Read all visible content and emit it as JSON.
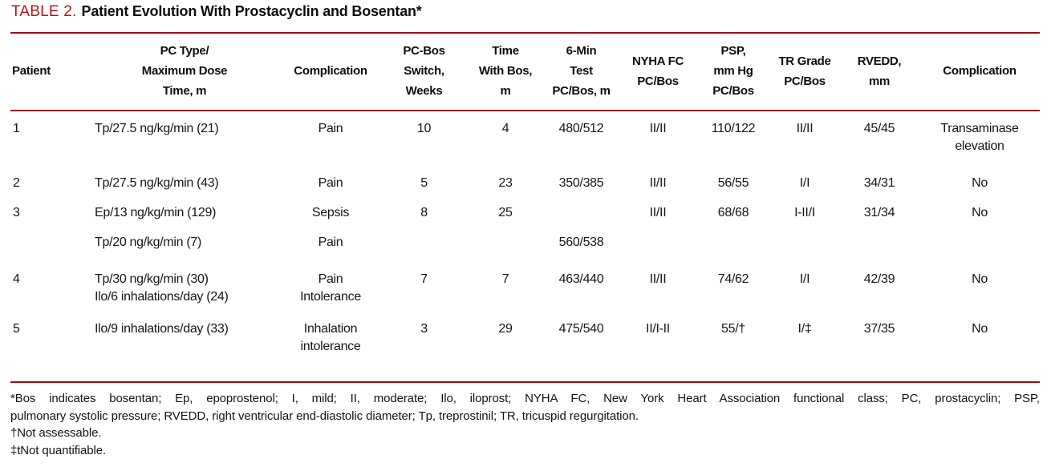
{
  "colors": {
    "accent_red": "#b5121a",
    "rule_red": "#9e0d12"
  },
  "title": {
    "label": "TABLE 2.",
    "text": "Patient Evolution With Prostacyclin and Bosentan*"
  },
  "table": {
    "header": [
      [
        "Patient"
      ],
      [
        "PC Type/",
        "Maximum Dose",
        "Time, m"
      ],
      [
        "Complication"
      ],
      [
        "PC-Bos",
        "Switch,",
        "Weeks"
      ],
      [
        "Time",
        "With Bos,",
        "m"
      ],
      [
        "6-Min",
        "Test",
        "PC/Bos, m"
      ],
      [
        "NYHA FC",
        "PC/Bos"
      ],
      [
        "PSP,",
        "mm Hg",
        "PC/Bos"
      ],
      [
        "TR Grade",
        "PC/Bos"
      ],
      [
        "RVEDD,",
        "mm"
      ],
      [
        "Complication"
      ]
    ],
    "rows": [
      [
        [
          "1"
        ],
        [
          "Tp/27.5 ng/kg/min (21)"
        ],
        [
          "Pain"
        ],
        [
          "10"
        ],
        [
          "4"
        ],
        [
          "480/512"
        ],
        [
          "II/II"
        ],
        [
          "110/122"
        ],
        [
          "II/II"
        ],
        [
          "45/45"
        ],
        [
          "Transaminase",
          "elevation"
        ]
      ],
      [
        [
          "2"
        ],
        [
          "Tp/27.5 ng/kg/min (43)"
        ],
        [
          "Pain"
        ],
        [
          "5"
        ],
        [
          "23"
        ],
        [
          "350/385"
        ],
        [
          "II/II"
        ],
        [
          "56/55"
        ],
        [
          "I/I"
        ],
        [
          "34/31"
        ],
        [
          "No"
        ]
      ],
      [
        [
          "3"
        ],
        [
          "Ep/13 ng/kg/min (129)"
        ],
        [
          "Sepsis"
        ],
        [
          "8"
        ],
        [
          "25"
        ],
        [
          ""
        ],
        [
          "II/II"
        ],
        [
          "68/68"
        ],
        [
          "I-II/I"
        ],
        [
          "31/34"
        ],
        [
          "No"
        ]
      ],
      [
        [
          ""
        ],
        [
          "Tp/20 ng/kg/min (7)"
        ],
        [
          "Pain"
        ],
        [
          ""
        ],
        [
          ""
        ],
        [
          "560/538"
        ],
        [
          ""
        ],
        [
          ""
        ],
        [
          ""
        ],
        [
          ""
        ],
        [
          ""
        ]
      ],
      [
        [
          "4"
        ],
        [
          "Tp/30 ng/kg/min (30)",
          "Ilo/6 inhalations/day (24)"
        ],
        [
          "Pain",
          "Intolerance"
        ],
        [
          "7"
        ],
        [
          "7"
        ],
        [
          "463/440"
        ],
        [
          "II/II"
        ],
        [
          "74/62"
        ],
        [
          "I/I"
        ],
        [
          "42/39"
        ],
        [
          "No"
        ]
      ],
      [
        [
          "5"
        ],
        [
          "Ilo/9 inhalations/day (33)"
        ],
        [
          "Inhalation",
          "intolerance"
        ],
        [
          "3"
        ],
        [
          "29"
        ],
        [
          "475/540"
        ],
        [
          "II/I-II"
        ],
        [
          "55/†"
        ],
        [
          "I/‡"
        ],
        [
          "37/35"
        ],
        [
          "No"
        ]
      ]
    ]
  },
  "footnotes": {
    "abbreviations": "*Bos indicates bosentan; Ep, epoprostenol; I, mild; II, moderate; Ilo, iloprost; NYHA FC, New York Heart Association functional class; PC, prostacyclin; PSP, pulmonary systolic pressure; RVEDD, right ventricular end-diastolic diameter; Tp, treprostinil; TR, tricuspid regurgitation.",
    "abbreviations_line1": "*Bos indicates bosentan; Ep, epoprostenol; I, mild; II, moderate; Ilo, iloprost; NYHA FC, New York Heart Association functional class; PC, prostacyclin; PSP,",
    "abbreviations_line2": "pulmonary systolic pressure; RVEDD, right ventricular end-diastolic diameter; Tp, treprostinil; TR, tricuspid regurgitation.",
    "dagger": "†Not assessable.",
    "double_dagger": "‡tNot quantifiable."
  }
}
